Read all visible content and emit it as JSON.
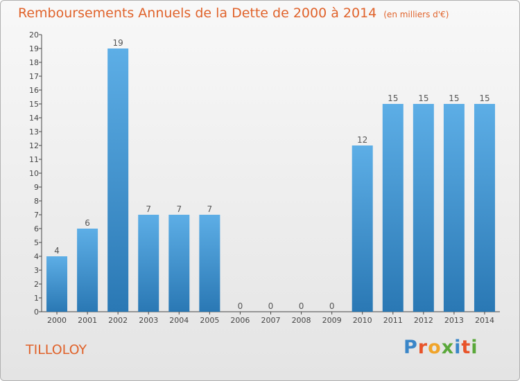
{
  "title": "Remboursements Annuels de la Dette de 2000 à 2014",
  "subtitle": "(en milliers d'€)",
  "commune": "TILLOLOY",
  "brand": {
    "letters": [
      "P",
      "r",
      "o",
      "x",
      "i",
      "t",
      "i"
    ],
    "colors": [
      "#3a86c8",
      "#e8542a",
      "#f0a42a",
      "#5aa83a",
      "#3a86c8",
      "#e8542a",
      "#5aa83a"
    ]
  },
  "chart_data": {
    "type": "bar",
    "title": "Remboursements Annuels de la Dette de 2000 à 2014",
    "categories": [
      "2000",
      "2001",
      "2002",
      "2003",
      "2004",
      "2005",
      "2006",
      "2007",
      "2008",
      "2009",
      "2010",
      "2011",
      "2012",
      "2013",
      "2014"
    ],
    "values": [
      4,
      6,
      19,
      7,
      7,
      7,
      0,
      0,
      0,
      0,
      12,
      15,
      15,
      15,
      15
    ],
    "ylim": [
      0,
      20
    ],
    "yticks": [
      0,
      1,
      2,
      3,
      4,
      5,
      6,
      7,
      8,
      9,
      10,
      11,
      12,
      13,
      14,
      15,
      16,
      17,
      18,
      19,
      20
    ],
    "grid": false,
    "bar_color_light": "#5daee6",
    "bar_color_dark": "#2a78b4",
    "label_color": "#555555"
  }
}
